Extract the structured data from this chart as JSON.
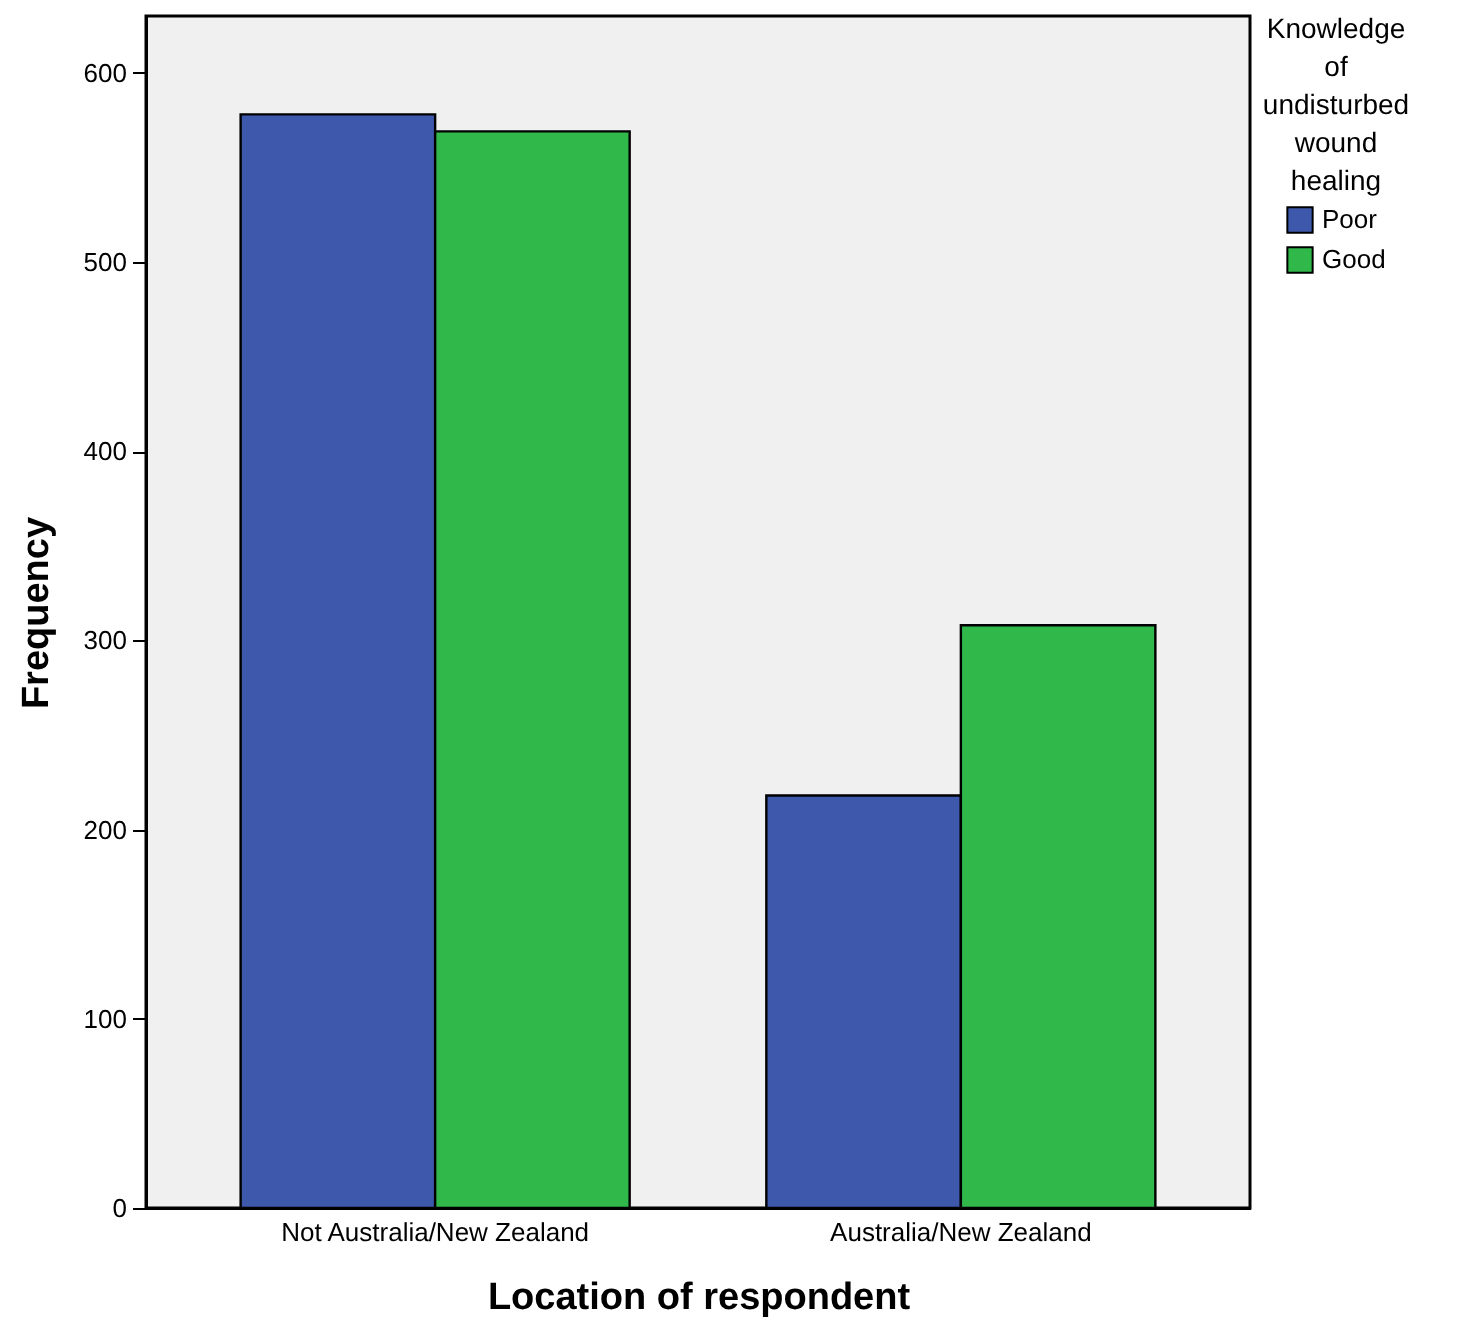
{
  "chart_data": {
    "type": "bar",
    "xlabel": "Location of respondent",
    "ylabel": "Frequency",
    "legend_title": "Knowledge of undisturbed wound healing",
    "categories": [
      "Not Australia/New Zealand",
      "Australia/New Zealand"
    ],
    "series": [
      {
        "name": "Poor",
        "color": "#3e58ac",
        "values": [
          578,
          218
        ]
      },
      {
        "name": "Good",
        "color": "#30b84a",
        "values": [
          569,
          308
        ]
      }
    ],
    "ylim": [
      0,
      630
    ],
    "yticks": [
      0,
      100,
      200,
      300,
      400,
      500,
      600
    ],
    "grid": false,
    "legend": "top right"
  }
}
